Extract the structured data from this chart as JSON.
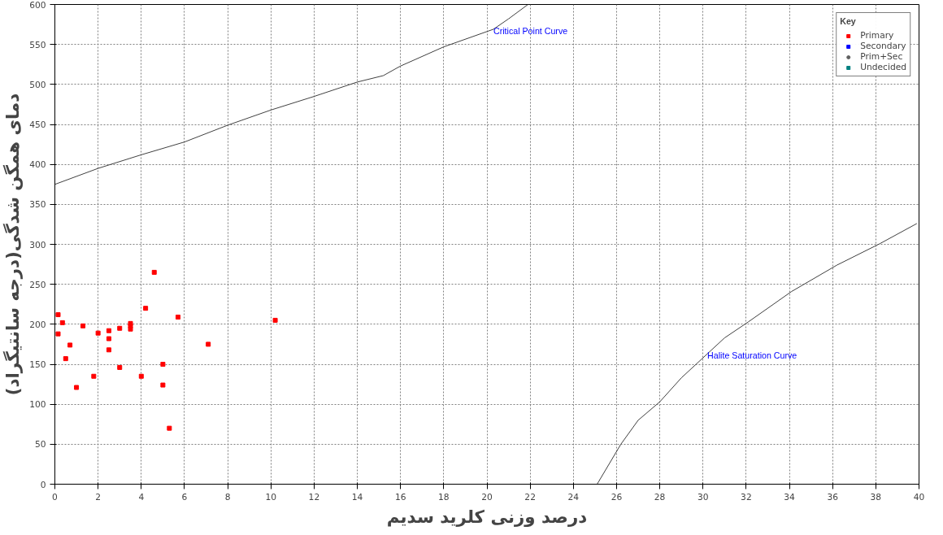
{
  "chart_data": {
    "type": "scatter",
    "xlabel": "درصد وزنی کلرید سدیم",
    "ylabel": "دمای همگن شدگی(درجه سانتیگراد)",
    "legend_title": "Key",
    "legend": "top right",
    "grid": true,
    "xlim": [
      0,
      40
    ],
    "ylim": [
      0,
      600
    ],
    "xticks": [
      0,
      2,
      4,
      6,
      8,
      10,
      12,
      14,
      16,
      18,
      20,
      22,
      24,
      26,
      28,
      30,
      32,
      34,
      36,
      38,
      40
    ],
    "yticks": [
      0,
      50,
      100,
      150,
      200,
      250,
      300,
      350,
      400,
      450,
      500,
      550,
      600
    ],
    "series": [
      {
        "name": "Primary",
        "color": "#ff0000",
        "marker": "square",
        "x": [
          0.15,
          0.15,
          0.35,
          0.5,
          0.7,
          1.0,
          1.3,
          1.8,
          2.0,
          2.5,
          2.5,
          2.5,
          3.0,
          3.0,
          3.5,
          3.5,
          3.5,
          4.0,
          4.2,
          4.6,
          5.0,
          5.0,
          5.3,
          5.7,
          7.1,
          10.2
        ],
        "values": [
          212,
          188,
          202,
          157,
          174,
          121,
          198,
          135,
          189,
          192,
          182,
          168,
          195,
          146,
          201,
          198,
          194,
          135,
          220,
          265,
          150,
          124,
          70,
          209,
          175,
          205
        ]
      },
      {
        "name": "Secondary",
        "color": "#0000ff",
        "marker": "square"
      },
      {
        "name": "Prim+Sec",
        "color": "#606060",
        "marker": "circle"
      },
      {
        "name": "Undecided",
        "color": "#008080",
        "marker": "square"
      },
      {
        "type": "line",
        "color": "#404040",
        "marker": "none",
        "x": [
          0,
          2,
          4,
          6,
          8,
          10,
          12,
          14,
          15.2,
          16,
          18,
          20.3,
          21,
          21.9
        ],
        "values": [
          375,
          395,
          412,
          428,
          449,
          468,
          485,
          503,
          511,
          523,
          547,
          569,
          582,
          600
        ]
      },
      {
        "type": "line",
        "color": "#404040",
        "marker": "none",
        "x": [
          25.1,
          26.2,
          27,
          28.0,
          29,
          30.2,
          31,
          32.1,
          34.1,
          36.2,
          38.2,
          39.9
        ],
        "values": [
          0,
          50,
          80,
          103,
          133,
          163,
          183,
          203,
          241,
          274,
          301,
          326
        ]
      }
    ],
    "annotations": [
      {
        "text": "Critical Point Curve",
        "x": 20.3,
        "y": 569
      },
      {
        "text": "Halite Saturation Curve",
        "x": 30.2,
        "y": 163
      }
    ]
  }
}
